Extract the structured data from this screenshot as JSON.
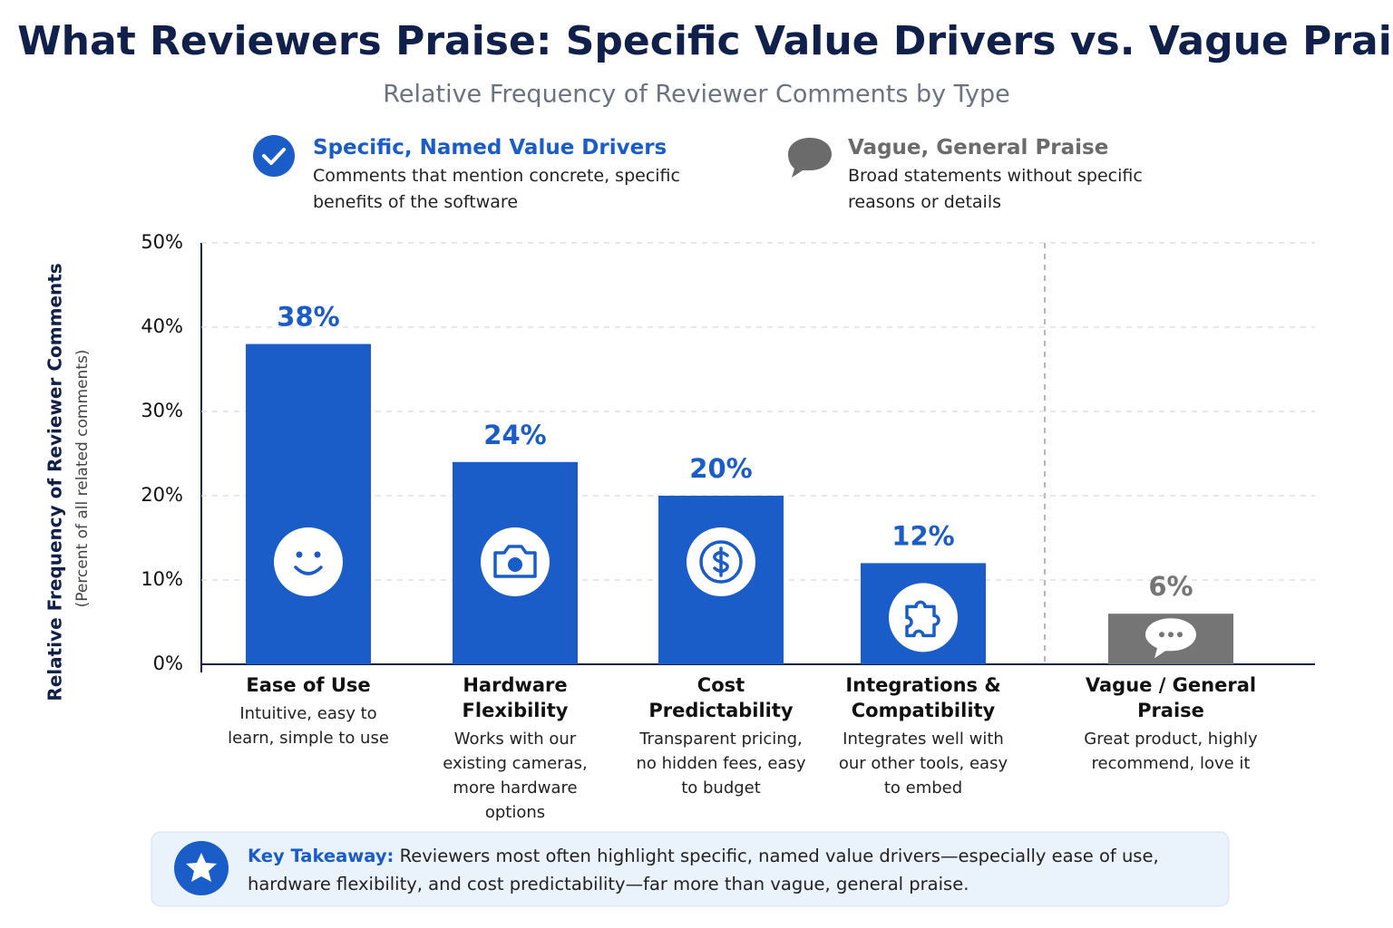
{
  "chart_data": {
    "type": "bar",
    "title": "What Reviewers Praise: Specific Value Drivers vs. Vague Praise",
    "subtitle": "Relative Frequency of Reviewer Comments by Type",
    "y_label": "Relative Frequency of Reviewer Comments",
    "y_sublabel": "(Percent of all related comments)",
    "categories": [
      "Ease of Use",
      "Hardware Flexibility",
      "Cost Predictability",
      "Integrations & Compatibility",
      "Vague / General Praise"
    ],
    "category_descriptions": [
      "Intuitive, easy to learn, simple to use",
      "Works with our existing cameras, more hardware options",
      "Transparent pricing, no hidden fees, easy to budget",
      "Integrates well with our other tools, easy to embed",
      "Great product, highly recommend, love it"
    ],
    "series": [
      {
        "name": "Specific, Named Value Drivers",
        "description": "Comments that mention concrete, specific benefits of the software",
        "color": "#1a5dc8",
        "values": [
          38,
          24,
          20,
          12,
          null
        ],
        "value_labels": [
          "38%",
          "24%",
          "20%",
          "12%",
          null
        ]
      },
      {
        "name": "Vague, General Praise",
        "description": "Broad statements without specific reasons or details",
        "color": "#757575",
        "values": [
          null,
          null,
          null,
          null,
          6
        ],
        "value_labels": [
          null,
          null,
          null,
          null,
          "6%"
        ]
      }
    ],
    "ylim": [
      0,
      50
    ],
    "yticks": [
      {
        "value": 0,
        "label": "0%"
      },
      {
        "value": 10,
        "label": "10%"
      },
      {
        "value": 20,
        "label": "20%"
      },
      {
        "value": 30,
        "label": "30%"
      },
      {
        "value": 40,
        "label": "40%"
      },
      {
        "value": 50,
        "label": "50%"
      }
    ],
    "grid": true,
    "takeaway": {
      "heading": "Key Takeaway:",
      "text": "Reviewers most often highlight specific, named value drivers—especially ease of use, hardware flexibility, and cost predictability—far more than vague, general praise."
    }
  }
}
